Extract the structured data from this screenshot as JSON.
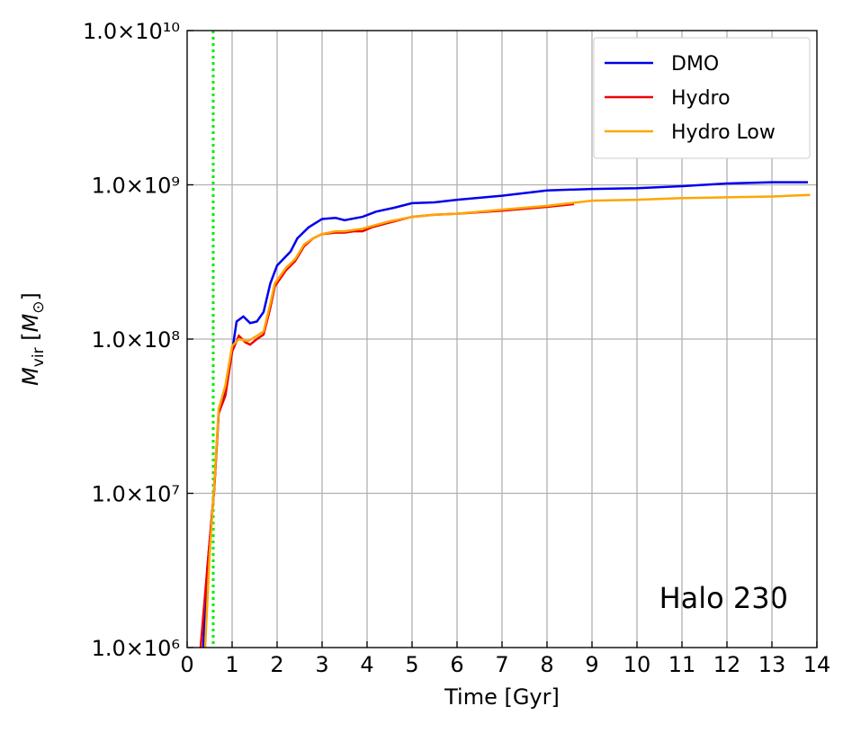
{
  "chart_data": {
    "type": "line",
    "x_label": "Time [Gyr]",
    "y_label": {
      "symbol": "M",
      "symbol_subscript": "vir",
      "unit": "M",
      "unit_subscript": "⊙"
    },
    "annotation": "Halo 230",
    "xlim": [
      0,
      14
    ],
    "xticks": [
      0,
      1,
      2,
      3,
      4,
      5,
      6,
      7,
      8,
      9,
      10,
      11,
      12,
      13,
      14
    ],
    "ylim": [
      1000000,
      10000000000
    ],
    "log_y": true,
    "yticks": [
      {
        "value": 1000000,
        "label": "1.0×10⁶"
      },
      {
        "value": 10000000,
        "label": "1.0×10⁷"
      },
      {
        "value": 100000000,
        "label": "1.0×10⁸"
      },
      {
        "value": 1000000000,
        "label": "1.0×10⁹"
      },
      {
        "value": 10000000000,
        "label": "1.0×10¹⁰"
      }
    ],
    "grid": true,
    "legend": "upper right",
    "vline": {
      "x": 0.58,
      "color": "#00ee00"
    },
    "series": [
      {
        "name": "DMO",
        "color": "#0000ee",
        "x": [
          0.36,
          0.45,
          0.6,
          0.7,
          0.85,
          1.0,
          1.1,
          1.25,
          1.4,
          1.55,
          1.7,
          1.85,
          2.0,
          2.3,
          2.45,
          2.7,
          3.0,
          3.3,
          3.5,
          3.9,
          4.2,
          4.6,
          5.0,
          5.5,
          6.0,
          7.0,
          8.0,
          9.0,
          10.0,
          11.0,
          12.0,
          13.0,
          13.8
        ],
        "values": [
          1000000,
          3300000,
          10500000,
          33000000,
          45000000,
          83000000,
          130000000,
          140000000,
          127000000,
          130000000,
          150000000,
          230000000,
          300000000,
          370000000,
          450000000,
          530000000,
          600000000,
          610000000,
          590000000,
          620000000,
          670000000,
          710000000,
          760000000,
          770000000,
          800000000,
          850000000,
          920000000,
          940000000,
          950000000,
          980000000,
          1020000000,
          1040000000,
          1040000000
        ]
      },
      {
        "name": "Hydro",
        "color": "#ee0000",
        "x": [
          0.3,
          0.45,
          0.6,
          0.7,
          0.85,
          1.0,
          1.15,
          1.3,
          1.4,
          1.55,
          1.7,
          1.85,
          1.95,
          2.2,
          2.4,
          2.6,
          2.8,
          3.0,
          3.3,
          3.5,
          3.7,
          3.9,
          4.1,
          4.5,
          5.0,
          5.5,
          6.0,
          7.0,
          8.0,
          8.6
        ],
        "values": [
          1000000,
          3300000,
          10500000,
          33000000,
          43000000,
          83000000,
          105000000,
          95000000,
          92000000,
          100000000,
          107000000,
          160000000,
          220000000,
          280000000,
          320000000,
          400000000,
          450000000,
          480000000,
          490000000,
          490000000,
          500000000,
          500000000,
          530000000,
          570000000,
          620000000,
          640000000,
          650000000,
          680000000,
          720000000,
          750000000
        ]
      },
      {
        "name": "Hydro Low",
        "color": "#ffa500",
        "x": [
          0.4,
          0.5,
          0.6,
          0.7,
          0.85,
          1.0,
          1.15,
          1.35,
          1.55,
          1.7,
          1.85,
          1.95,
          2.2,
          2.4,
          2.6,
          2.8,
          3.0,
          3.3,
          3.5,
          3.9,
          4.1,
          4.5,
          5.0,
          5.5,
          6.0,
          7.0,
          8.0,
          9.0,
          10.0,
          11.0,
          12.0,
          13.0,
          13.85
        ],
        "values": [
          1000000,
          4000000,
          11000000,
          35000000,
          50000000,
          90000000,
          100000000,
          97000000,
          105000000,
          112000000,
          170000000,
          230000000,
          290000000,
          330000000,
          410000000,
          450000000,
          480000000,
          500000000,
          500000000,
          520000000,
          540000000,
          580000000,
          620000000,
          640000000,
          650000000,
          690000000,
          730000000,
          790000000,
          800000000,
          820000000,
          830000000,
          840000000,
          860000000
        ]
      }
    ]
  }
}
